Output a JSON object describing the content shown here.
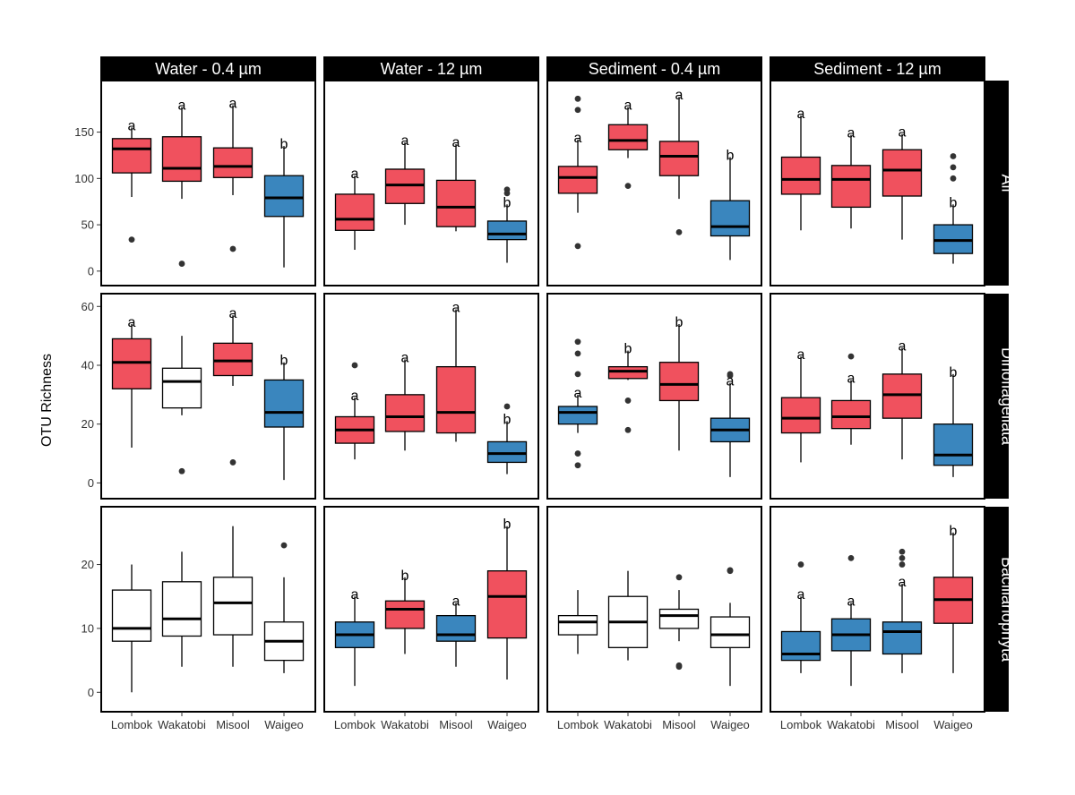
{
  "chart_data": {
    "type": "boxplot",
    "ylabel": "OTU Richness",
    "xlabel": "",
    "categories": [
      "Lombok",
      "Wakatobi",
      "Misool",
      "Waigeo"
    ],
    "columns": [
      "Water - 0.4 µm",
      "Water - 12 µm",
      "Sediment - 0.4 µm",
      "Sediment - 12 µm"
    ],
    "rows": [
      {
        "label": "All",
        "ylim": [
          -5,
          195
        ],
        "yticks": [
          0,
          50,
          100,
          150
        ]
      },
      {
        "label": "Dinoflagellata",
        "ylim": [
          -2,
          61
        ],
        "yticks": [
          0,
          20,
          40,
          60
        ]
      },
      {
        "label": "Bacillariophyta",
        "ylim": [
          -1.5,
          27.5
        ],
        "yticks": [
          0,
          10,
          20
        ]
      }
    ],
    "colors": {
      "red": "#f0515e",
      "blue": "#3a86be",
      "white": "#ffffff"
    },
    "panels": [
      [
        [
          {
            "min": 80,
            "q1": 106,
            "median": 132,
            "q3": 143,
            "max": 155,
            "outliers": [
              34
            ],
            "color": "red",
            "letter": "a"
          },
          {
            "min": 78,
            "q1": 97,
            "median": 111,
            "q3": 145,
            "max": 177,
            "outliers": [
              8
            ],
            "color": "red",
            "letter": "a"
          },
          {
            "min": 82,
            "q1": 101,
            "median": 113,
            "q3": 133,
            "max": 179,
            "outliers": [
              24
            ],
            "color": "red",
            "letter": "a"
          },
          {
            "min": 4,
            "q1": 59,
            "median": 79,
            "q3": 103,
            "max": 135,
            "outliers": [],
            "color": "blue",
            "letter": "b"
          }
        ],
        [
          {
            "min": 23,
            "q1": 44,
            "median": 56,
            "q3": 83,
            "max": 103,
            "outliers": [],
            "color": "red",
            "letter": "a"
          },
          {
            "min": 50,
            "q1": 73,
            "median": 93,
            "q3": 110,
            "max": 139,
            "outliers": [],
            "color": "red",
            "letter": "a"
          },
          {
            "min": 43,
            "q1": 48,
            "median": 69,
            "q3": 98,
            "max": 137,
            "outliers": [],
            "color": "red",
            "letter": "a"
          },
          {
            "min": 9,
            "q1": 34,
            "median": 40,
            "q3": 54,
            "max": 72,
            "outliers": [
              84,
              88
            ],
            "color": "blue",
            "letter": "b"
          }
        ],
        [
          {
            "min": 63,
            "q1": 84,
            "median": 101,
            "q3": 113,
            "max": 142,
            "outliers": [
              27,
              174,
              186
            ],
            "color": "red",
            "letter": "a"
          },
          {
            "min": 122,
            "q1": 131,
            "median": 141,
            "q3": 158,
            "max": 177,
            "outliers": [
              92
            ],
            "color": "red",
            "letter": "a"
          },
          {
            "min": 78,
            "q1": 103,
            "median": 124,
            "q3": 140,
            "max": 188,
            "outliers": [
              42
            ],
            "color": "red",
            "letter": "a"
          },
          {
            "min": 12,
            "q1": 38,
            "median": 48,
            "q3": 76,
            "max": 123,
            "outliers": [],
            "color": "blue",
            "letter": "b"
          }
        ],
        [
          {
            "min": 44,
            "q1": 83,
            "median": 99,
            "q3": 123,
            "max": 168,
            "outliers": [],
            "color": "red",
            "letter": "a"
          },
          {
            "min": 46,
            "q1": 69,
            "median": 99,
            "q3": 114,
            "max": 147,
            "outliers": [],
            "color": "red",
            "letter": "a"
          },
          {
            "min": 34,
            "q1": 81,
            "median": 109,
            "q3": 131,
            "max": 148,
            "outliers": [],
            "color": "red",
            "letter": "a"
          },
          {
            "min": 8,
            "q1": 19,
            "median": 33,
            "q3": 50,
            "max": 72,
            "outliers": [
              100,
              112,
              124
            ],
            "color": "blue",
            "letter": "b"
          }
        ]
      ],
      [
        [
          {
            "min": 12,
            "q1": 32,
            "median": 41,
            "q3": 49,
            "max": 54,
            "outliers": [],
            "color": "red",
            "letter": "a"
          },
          {
            "min": 23,
            "q1": 25.5,
            "median": 34.5,
            "q3": 39,
            "max": 50,
            "outliers": [
              4
            ],
            "color": "white",
            "letter": ""
          },
          {
            "min": 33,
            "q1": 36.5,
            "median": 41.5,
            "q3": 47.5,
            "max": 57,
            "outliers": [
              7
            ],
            "color": "red",
            "letter": "a"
          },
          {
            "min": 1,
            "q1": 19,
            "median": 24,
            "q3": 35,
            "max": 41,
            "outliers": [],
            "color": "blue",
            "letter": "b"
          }
        ],
        [
          {
            "min": 8,
            "q1": 13.5,
            "median": 18,
            "q3": 22.5,
            "max": 29,
            "outliers": [
              40
            ],
            "color": "red",
            "letter": "a"
          },
          {
            "min": 11,
            "q1": 17.5,
            "median": 22.5,
            "q3": 30,
            "max": 42,
            "outliers": [],
            "color": "red",
            "letter": "a"
          },
          {
            "min": 14,
            "q1": 17,
            "median": 24,
            "q3": 39.5,
            "max": 59,
            "outliers": [],
            "color": "red",
            "letter": "a"
          },
          {
            "min": 3,
            "q1": 7,
            "median": 10,
            "q3": 14,
            "max": 21,
            "outliers": [
              26
            ],
            "color": "blue",
            "letter": "b"
          }
        ],
        [
          {
            "min": 17,
            "q1": 20,
            "median": 24,
            "q3": 26,
            "max": 30,
            "outliers": [
              6,
              10,
              37,
              44,
              48
            ],
            "color": "blue",
            "letter": "a"
          },
          {
            "min": 35,
            "q1": 35.5,
            "median": 38,
            "q3": 39.5,
            "max": 45,
            "outliers": [
              18,
              28
            ],
            "color": "red",
            "letter": "b"
          },
          {
            "min": 11,
            "q1": 28,
            "median": 33.5,
            "q3": 41,
            "max": 54,
            "outliers": [],
            "color": "red",
            "letter": "b"
          },
          {
            "min": 2,
            "q1": 14,
            "median": 18,
            "q3": 22,
            "max": 34,
            "outliers": [
              36.5,
              37
            ],
            "color": "blue",
            "letter": "a"
          }
        ],
        [
          {
            "min": 7,
            "q1": 17,
            "median": 22,
            "q3": 29,
            "max": 43,
            "outliers": [],
            "color": "red",
            "letter": "a"
          },
          {
            "min": 13,
            "q1": 18.5,
            "median": 22.5,
            "q3": 28,
            "max": 35,
            "outliers": [
              43
            ],
            "color": "red",
            "letter": "a"
          },
          {
            "min": 8,
            "q1": 22,
            "median": 30,
            "q3": 37,
            "max": 46,
            "outliers": [],
            "color": "red",
            "letter": "a"
          },
          {
            "min": 2,
            "q1": 6,
            "median": 9.5,
            "q3": 20,
            "max": 37,
            "outliers": [],
            "color": "blue",
            "letter": "b"
          }
        ]
      ],
      [
        [
          {
            "min": 0,
            "q1": 8,
            "median": 10,
            "q3": 16,
            "max": 20,
            "outliers": [],
            "color": "white",
            "letter": ""
          },
          {
            "min": 4,
            "q1": 8.8,
            "median": 11.5,
            "q3": 17.3,
            "max": 22,
            "outliers": [],
            "color": "white",
            "letter": ""
          },
          {
            "min": 4,
            "q1": 9,
            "median": 14,
            "q3": 18,
            "max": 26,
            "outliers": [],
            "color": "white",
            "letter": ""
          },
          {
            "min": 3,
            "q1": 5,
            "median": 8,
            "q3": 11,
            "max": 18,
            "outliers": [
              23
            ],
            "color": "white",
            "letter": ""
          }
        ],
        [
          {
            "min": 1,
            "q1": 7,
            "median": 9,
            "q3": 11,
            "max": 15,
            "outliers": [],
            "color": "blue",
            "letter": "a"
          },
          {
            "min": 6,
            "q1": 10,
            "median": 13,
            "q3": 14.3,
            "max": 18,
            "outliers": [],
            "color": "red",
            "letter": "b"
          },
          {
            "min": 4,
            "q1": 8,
            "median": 9,
            "q3": 12,
            "max": 14,
            "outliers": [],
            "color": "blue",
            "letter": "a"
          },
          {
            "min": 2,
            "q1": 8.5,
            "median": 15,
            "q3": 19,
            "max": 26,
            "outliers": [],
            "color": "red",
            "letter": "b"
          }
        ],
        [
          {
            "min": 6,
            "q1": 9,
            "median": 11,
            "q3": 12,
            "max": 16,
            "outliers": [],
            "color": "white",
            "letter": ""
          },
          {
            "min": 5,
            "q1": 7,
            "median": 11,
            "q3": 15,
            "max": 19,
            "outliers": [],
            "color": "white",
            "letter": ""
          },
          {
            "min": 8,
            "q1": 10,
            "median": 12,
            "q3": 13,
            "max": 16,
            "outliers": [
              4,
              4.2,
              18
            ],
            "color": "white",
            "letter": ""
          },
          {
            "min": 1,
            "q1": 7,
            "median": 9,
            "q3": 11.8,
            "max": 14,
            "outliers": [
              19,
              19.1
            ],
            "color": "white",
            "letter": ""
          }
        ],
        [
          {
            "min": 3,
            "q1": 5,
            "median": 6,
            "q3": 9.5,
            "max": 15,
            "outliers": [
              20
            ],
            "color": "blue",
            "letter": "a"
          },
          {
            "min": 1,
            "q1": 6.5,
            "median": 9,
            "q3": 11.5,
            "max": 14,
            "outliers": [
              21
            ],
            "color": "blue",
            "letter": "a"
          },
          {
            "min": 3,
            "q1": 6,
            "median": 9.5,
            "q3": 11,
            "max": 17,
            "outliers": [
              20,
              21,
              22
            ],
            "color": "blue",
            "letter": "a"
          },
          {
            "min": 3,
            "q1": 10.8,
            "median": 14.5,
            "q3": 18,
            "max": 25,
            "outliers": [],
            "color": "red",
            "letter": "b"
          }
        ]
      ]
    ]
  }
}
